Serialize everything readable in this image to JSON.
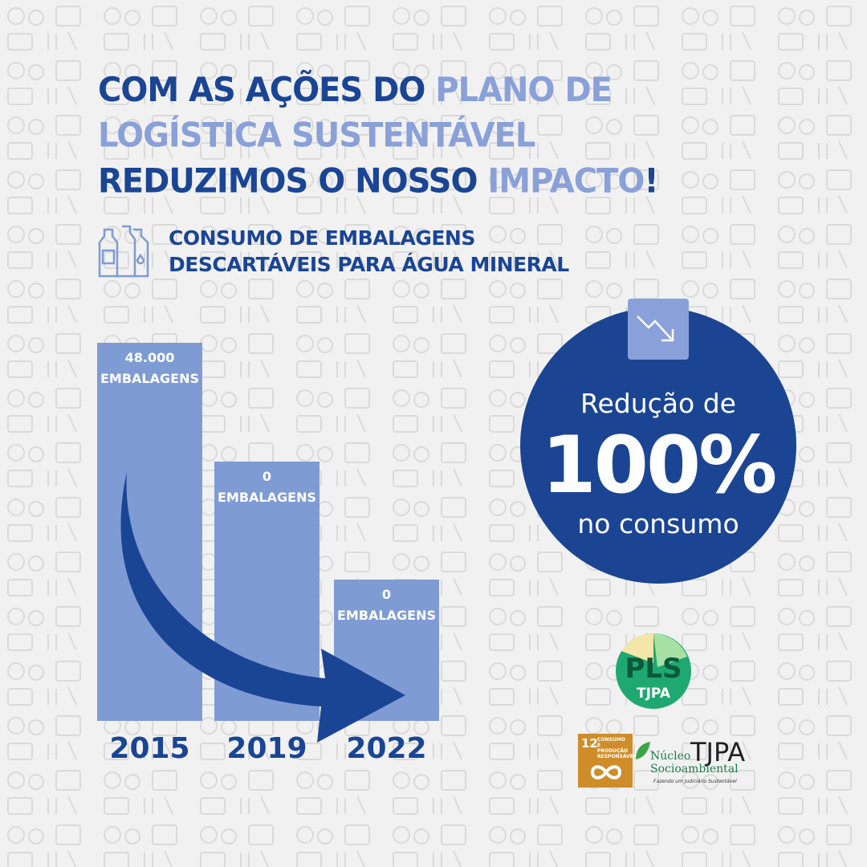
{
  "headline": {
    "l1a": "COM AS AÇÕES DO ",
    "l1b": "PLANO DE",
    "l2": "LOGÍSTICA SUSTENTÁVEL",
    "l3a": "REDUZIMOS O NOSSO ",
    "l3b": "IMPACTO",
    "l3c": "!"
  },
  "subtitle": {
    "l1": "CONSUMO DE EMBALAGENS",
    "l2": "DESCARTÁVEIS PARA ÁGUA MINERAL"
  },
  "chart_data": {
    "type": "bar",
    "categories": [
      "2015",
      "2019",
      "2022"
    ],
    "values": [
      48000,
      0,
      0
    ],
    "value_labels": [
      {
        "v": "48.000",
        "u": "EMBALAGENS"
      },
      {
        "v": "0",
        "u": "EMBALAGENS"
      },
      {
        "v": "0",
        "u": "EMBALAGENS"
      }
    ],
    "title": "CONSUMO DE EMBALAGENS DESCARTÁVEIS PARA ÁGUA MINERAL"
  },
  "reduction": {
    "l1": "Redução de",
    "value": "100%",
    "l3": "no consumo",
    "icon": "trend-down-icon"
  },
  "logos": {
    "pls": "PLS",
    "pls_sub": "TJPA",
    "ods_number": "12",
    "ods_text": "CONSUMO E PRODUÇÃO RESPONSÁVEIS",
    "nucleo1": "Núcleo",
    "nucleo2": "Socioambiental",
    "tjpa": "TJPA",
    "tagline": "Fazendo um Judiciário Sustentável"
  },
  "colors": {
    "dark_blue": "#1a4595",
    "light_blue": "#8aa0d8",
    "bar": "#7f9bd4",
    "background": "#f1f1f1"
  }
}
